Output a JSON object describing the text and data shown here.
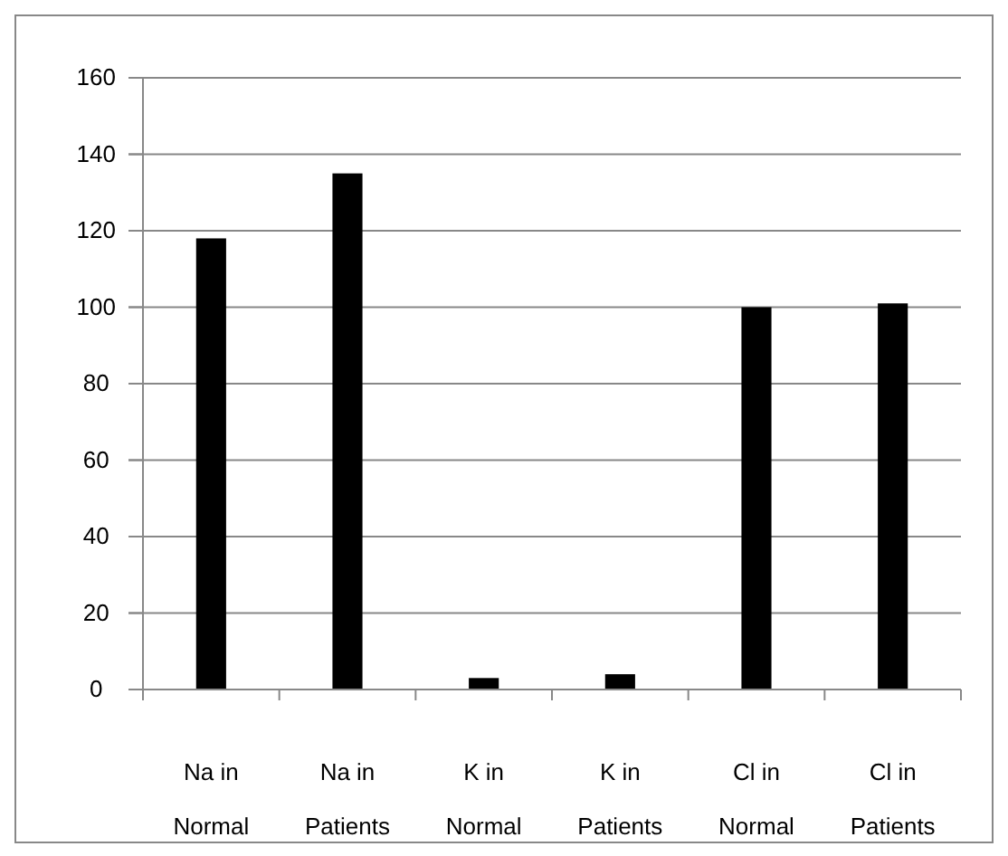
{
  "chart_data": {
    "type": "bar",
    "categories": [
      "Na in Normal",
      "Na in Patients",
      "K in Normal",
      "K in Patients",
      "Cl in Normal",
      "Cl in Patients"
    ],
    "values": [
      118,
      135,
      3,
      4,
      100,
      101
    ],
    "color": "#000000",
    "ylim": [
      0,
      160
    ],
    "yticks": [
      0,
      20,
      40,
      60,
      80,
      100,
      120,
      140,
      160
    ],
    "grid": "y"
  }
}
